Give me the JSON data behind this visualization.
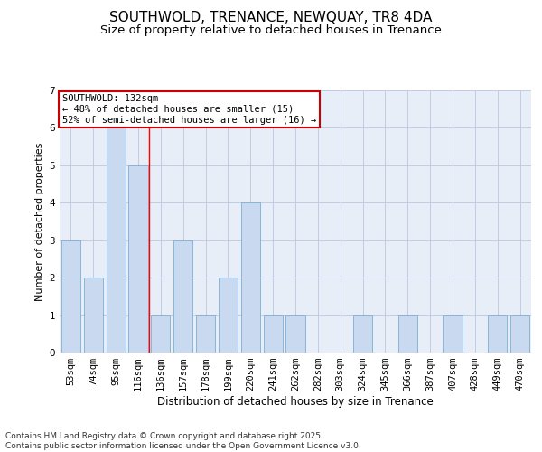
{
  "title": "SOUTHWOLD, TRENANCE, NEWQUAY, TR8 4DA",
  "subtitle": "Size of property relative to detached houses in Trenance",
  "xlabel": "Distribution of detached houses by size in Trenance",
  "ylabel": "Number of detached properties",
  "categories": [
    "53sqm",
    "74sqm",
    "95sqm",
    "116sqm",
    "136sqm",
    "157sqm",
    "178sqm",
    "199sqm",
    "220sqm",
    "241sqm",
    "262sqm",
    "282sqm",
    "303sqm",
    "324sqm",
    "345sqm",
    "366sqm",
    "387sqm",
    "407sqm",
    "428sqm",
    "449sqm",
    "470sqm"
  ],
  "values": [
    3,
    2,
    6,
    5,
    1,
    3,
    1,
    2,
    4,
    1,
    1,
    0,
    0,
    1,
    0,
    1,
    0,
    1,
    0,
    1,
    1
  ],
  "bar_color": "#c9d9f0",
  "bar_edge_color": "#7bafd4",
  "grid_color": "#c0cce0",
  "bg_color": "#e8eef8",
  "red_line_x": 3.5,
  "annotation_text": "SOUTHWOLD: 132sqm\n← 48% of detached houses are smaller (15)\n52% of semi-detached houses are larger (16) →",
  "annotation_box_color": "#ffffff",
  "annotation_box_edge": "#cc0000",
  "ylim": [
    0,
    7
  ],
  "yticks": [
    0,
    1,
    2,
    3,
    4,
    5,
    6,
    7
  ],
  "footer": "Contains HM Land Registry data © Crown copyright and database right 2025.\nContains public sector information licensed under the Open Government Licence v3.0.",
  "title_fontsize": 11,
  "subtitle_fontsize": 9.5,
  "xlabel_fontsize": 8.5,
  "ylabel_fontsize": 8,
  "tick_fontsize": 7.5,
  "footer_fontsize": 6.5,
  "annotation_fontsize": 7.5
}
